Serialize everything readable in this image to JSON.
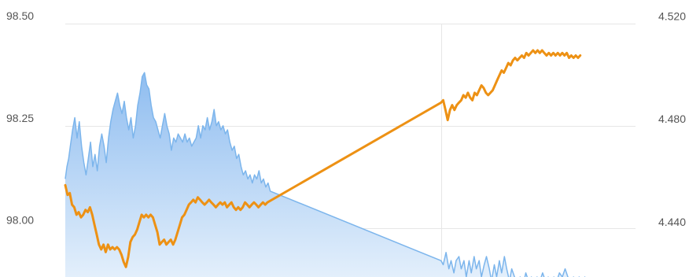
{
  "chart_data": {
    "type": "line",
    "title": "",
    "xlabel": "",
    "grid": true,
    "legend": "none",
    "axes": {
      "left": {
        "ylim": [
          97.88,
          98.5
        ],
        "ticks": [
          "98.50",
          "98.25",
          "98.00"
        ]
      },
      "right": {
        "ylim": [
          4.4216,
          4.5201
        ],
        "ticks": [
          "4.520",
          "4.480",
          "4.440"
        ]
      }
    },
    "xlim": [
      0,
      100
    ],
    "vertical_gridline_x": 66.9,
    "series": [
      {
        "axis": "left",
        "style": "area",
        "color": "#7cb5ec",
        "fill_top": "#8fbdf0",
        "fill_bottom": "#e8f2fc",
        "points": [
          [
            0,
            98.12
          ],
          [
            0.3,
            98.15
          ],
          [
            0.6,
            98.17
          ],
          [
            0.9,
            98.2
          ],
          [
            1.3,
            98.24
          ],
          [
            1.7,
            98.27
          ],
          [
            2.1,
            98.22
          ],
          [
            2.5,
            98.26
          ],
          [
            2.9,
            98.2
          ],
          [
            3.3,
            98.16
          ],
          [
            3.7,
            98.13
          ],
          [
            4.1,
            98.17
          ],
          [
            4.5,
            98.21
          ],
          [
            4.9,
            98.15
          ],
          [
            5.3,
            98.18
          ],
          [
            5.7,
            98.14
          ],
          [
            6.1,
            98.2
          ],
          [
            6.5,
            98.23
          ],
          [
            6.9,
            98.2
          ],
          [
            7.3,
            98.16
          ],
          [
            7.7,
            98.22
          ],
          [
            8.1,
            98.26
          ],
          [
            8.5,
            98.29
          ],
          [
            8.9,
            98.31
          ],
          [
            9.3,
            98.33
          ],
          [
            9.7,
            98.3
          ],
          [
            10.1,
            98.28
          ],
          [
            10.5,
            98.31
          ],
          [
            10.9,
            98.27
          ],
          [
            11.3,
            98.24
          ],
          [
            11.7,
            98.27
          ],
          [
            12.1,
            98.22
          ],
          [
            12.5,
            98.25
          ],
          [
            12.9,
            98.3
          ],
          [
            13.3,
            98.33
          ],
          [
            13.7,
            98.37
          ],
          [
            14.1,
            98.38
          ],
          [
            14.5,
            98.35
          ],
          [
            14.9,
            98.34
          ],
          [
            15.3,
            98.3
          ],
          [
            15.7,
            98.27
          ],
          [
            16.1,
            98.26
          ],
          [
            16.5,
            98.24
          ],
          [
            16.9,
            98.22
          ],
          [
            17.3,
            98.25
          ],
          [
            17.7,
            98.28
          ],
          [
            18.1,
            98.25
          ],
          [
            18.5,
            98.23
          ],
          [
            18.9,
            98.19
          ],
          [
            19.3,
            98.22
          ],
          [
            19.7,
            98.21
          ],
          [
            20.1,
            98.23
          ],
          [
            20.5,
            98.22
          ],
          [
            20.9,
            98.21
          ],
          [
            21.3,
            98.23
          ],
          [
            21.7,
            98.21
          ],
          [
            22.1,
            98.22
          ],
          [
            22.5,
            98.2
          ],
          [
            22.9,
            98.21
          ],
          [
            23.3,
            98.22
          ],
          [
            23.7,
            98.25
          ],
          [
            24.1,
            98.22
          ],
          [
            24.5,
            98.25
          ],
          [
            24.9,
            98.24
          ],
          [
            25.3,
            98.27
          ],
          [
            25.7,
            98.24
          ],
          [
            26.1,
            98.26
          ],
          [
            26.5,
            98.29
          ],
          [
            26.9,
            98.25
          ],
          [
            27.3,
            98.26
          ],
          [
            27.7,
            98.24
          ],
          [
            28.1,
            98.25
          ],
          [
            28.5,
            98.23
          ],
          [
            28.9,
            98.24
          ],
          [
            29.3,
            98.21
          ],
          [
            29.7,
            98.19
          ],
          [
            30.1,
            98.2
          ],
          [
            30.5,
            98.17
          ],
          [
            30.9,
            98.18
          ],
          [
            31.3,
            98.15
          ],
          [
            31.7,
            98.13
          ],
          [
            32.1,
            98.14
          ],
          [
            32.5,
            98.12
          ],
          [
            32.9,
            98.13
          ],
          [
            33.3,
            98.11
          ],
          [
            33.7,
            98.13
          ],
          [
            34.1,
            98.12
          ],
          [
            34.5,
            98.14
          ],
          [
            34.9,
            98.11
          ],
          [
            35.3,
            98.12
          ],
          [
            35.7,
            98.1
          ],
          [
            36.1,
            98.11
          ],
          [
            36.5,
            98.09
          ],
          [
            66.9,
            97.92
          ],
          [
            67.3,
            97.91
          ],
          [
            67.8,
            97.94
          ],
          [
            68.3,
            97.9
          ],
          [
            68.7,
            97.92
          ],
          [
            69.2,
            97.89
          ],
          [
            69.6,
            97.92
          ],
          [
            70.1,
            97.93
          ],
          [
            70.5,
            97.9
          ],
          [
            71,
            97.92
          ],
          [
            71.4,
            97.88
          ],
          [
            71.9,
            97.92
          ],
          [
            72.3,
            97.89
          ],
          [
            72.8,
            97.93
          ],
          [
            73.2,
            97.9
          ],
          [
            73.7,
            97.92
          ],
          [
            74.1,
            97.88
          ],
          [
            74.6,
            97.91
          ],
          [
            75,
            97.93
          ],
          [
            75.5,
            97.9
          ],
          [
            75.9,
            97.87
          ],
          [
            76.4,
            97.91
          ],
          [
            76.8,
            97.88
          ],
          [
            77.3,
            97.92
          ],
          [
            77.7,
            97.89
          ],
          [
            78.2,
            97.93
          ],
          [
            78.6,
            97.9
          ],
          [
            79.1,
            97.87
          ],
          [
            79.5,
            97.9
          ],
          [
            80,
            97.88
          ],
          [
            80.5,
            97.86
          ],
          [
            81,
            97.88
          ],
          [
            81.5,
            97.86
          ],
          [
            82,
            97.89
          ],
          [
            82.5,
            97.87
          ],
          [
            83,
            97.88
          ],
          [
            83.5,
            97.86
          ],
          [
            84,
            97.88
          ],
          [
            84.5,
            97.87
          ],
          [
            85,
            97.89
          ],
          [
            85.5,
            97.87
          ],
          [
            86,
            97.88
          ],
          [
            86.5,
            97.86
          ],
          [
            87,
            97.88
          ],
          [
            87.5,
            97.87
          ],
          [
            88,
            97.89
          ],
          [
            88.5,
            97.88
          ],
          [
            89,
            97.9
          ],
          [
            89.5,
            97.88
          ],
          [
            90,
            97.87
          ],
          [
            90.5,
            97.88
          ],
          [
            91,
            97.86
          ],
          [
            91.5,
            97.88
          ],
          [
            92,
            97.87
          ],
          [
            92.5,
            97.88
          ],
          [
            93,
            97.86
          ],
          [
            93.5,
            97.87
          ],
          [
            94,
            97.86
          ],
          [
            94.5,
            97.87
          ],
          [
            95,
            97.86
          ],
          [
            95.5,
            97.85
          ]
        ]
      },
      {
        "axis": "right",
        "style": "line",
        "color": "#ed9114",
        "points": [
          [
            0,
            4.4573
          ],
          [
            0.4,
            4.4535
          ],
          [
            0.8,
            4.4542
          ],
          [
            1.2,
            4.4497
          ],
          [
            1.6,
            4.4487
          ],
          [
            2,
            4.4458
          ],
          [
            2.4,
            4.4468
          ],
          [
            2.8,
            4.4448
          ],
          [
            3.2,
            4.4458
          ],
          [
            3.6,
            4.4477
          ],
          [
            4,
            4.4468
          ],
          [
            4.4,
            4.4487
          ],
          [
            4.8,
            4.4458
          ],
          [
            5.2,
            4.4419
          ],
          [
            5.6,
            4.4381
          ],
          [
            6,
            4.4342
          ],
          [
            6.4,
            4.4323
          ],
          [
            6.8,
            4.4342
          ],
          [
            7.2,
            4.4313
          ],
          [
            7.6,
            4.4342
          ],
          [
            8,
            4.4323
          ],
          [
            8.4,
            4.4332
          ],
          [
            8.8,
            4.4323
          ],
          [
            9.2,
            4.4332
          ],
          [
            9.6,
            4.4323
          ],
          [
            10,
            4.4303
          ],
          [
            10.4,
            4.4274
          ],
          [
            10.8,
            4.4255
          ],
          [
            11.2,
            4.4294
          ],
          [
            11.6,
            4.4352
          ],
          [
            12,
            4.4371
          ],
          [
            12.4,
            4.4381
          ],
          [
            12.8,
            4.44
          ],
          [
            13.2,
            4.4429
          ],
          [
            13.6,
            4.4458
          ],
          [
            14,
            4.4448
          ],
          [
            14.4,
            4.4458
          ],
          [
            14.8,
            4.4448
          ],
          [
            15.2,
            4.4458
          ],
          [
            15.6,
            4.4448
          ],
          [
            16,
            4.4419
          ],
          [
            16.4,
            4.439
          ],
          [
            16.8,
            4.4342
          ],
          [
            17.2,
            4.4352
          ],
          [
            17.6,
            4.4361
          ],
          [
            18,
            4.4342
          ],
          [
            18.4,
            4.4352
          ],
          [
            18.8,
            4.4361
          ],
          [
            19.2,
            4.4342
          ],
          [
            19.6,
            4.4361
          ],
          [
            20,
            4.439
          ],
          [
            20.4,
            4.4419
          ],
          [
            20.8,
            4.4448
          ],
          [
            21.2,
            4.4458
          ],
          [
            21.6,
            4.4477
          ],
          [
            22,
            4.4497
          ],
          [
            22.4,
            4.4506
          ],
          [
            22.8,
            4.4516
          ],
          [
            23.2,
            4.4506
          ],
          [
            23.6,
            4.4526
          ],
          [
            24,
            4.4516
          ],
          [
            24.4,
            4.4506
          ],
          [
            24.8,
            4.4497
          ],
          [
            25.2,
            4.4506
          ],
          [
            25.6,
            4.4516
          ],
          [
            26,
            4.4506
          ],
          [
            26.4,
            4.4497
          ],
          [
            26.8,
            4.4487
          ],
          [
            27.2,
            4.4497
          ],
          [
            27.6,
            4.4506
          ],
          [
            28,
            4.4497
          ],
          [
            28.4,
            4.4506
          ],
          [
            28.8,
            4.4487
          ],
          [
            29.2,
            4.4497
          ],
          [
            29.6,
            4.4506
          ],
          [
            30,
            4.4487
          ],
          [
            30.4,
            4.4477
          ],
          [
            30.8,
            4.4487
          ],
          [
            31.2,
            4.4477
          ],
          [
            31.6,
            4.4487
          ],
          [
            32,
            4.4506
          ],
          [
            32.4,
            4.4497
          ],
          [
            32.8,
            4.4487
          ],
          [
            33.2,
            4.4497
          ],
          [
            33.6,
            4.4506
          ],
          [
            34,
            4.4497
          ],
          [
            34.4,
            4.4487
          ],
          [
            34.8,
            4.4497
          ],
          [
            35.2,
            4.4506
          ],
          [
            35.6,
            4.4497
          ],
          [
            36,
            4.4506
          ],
          [
            66.9,
            4.4894
          ],
          [
            67.3,
            4.4903
          ],
          [
            67.7,
            4.4865
          ],
          [
            68.1,
            4.4826
          ],
          [
            68.5,
            4.4865
          ],
          [
            68.9,
            4.4884
          ],
          [
            69.3,
            4.4865
          ],
          [
            69.7,
            4.4884
          ],
          [
            70.1,
            4.4894
          ],
          [
            70.5,
            4.4903
          ],
          [
            70.9,
            4.4923
          ],
          [
            71.3,
            4.4913
          ],
          [
            71.7,
            4.4932
          ],
          [
            72.1,
            4.4913
          ],
          [
            72.5,
            4.4903
          ],
          [
            72.9,
            4.4932
          ],
          [
            73.3,
            4.4923
          ],
          [
            73.7,
            4.4942
          ],
          [
            74.1,
            4.4961
          ],
          [
            74.5,
            4.4951
          ],
          [
            74.9,
            4.4932
          ],
          [
            75.3,
            4.4923
          ],
          [
            75.7,
            4.4932
          ],
          [
            76.1,
            4.4942
          ],
          [
            76.5,
            4.4961
          ],
          [
            76.9,
            4.4981
          ],
          [
            77.3,
            4.5
          ],
          [
            77.7,
            4.5019
          ],
          [
            78.1,
            4.501
          ],
          [
            78.5,
            4.5029
          ],
          [
            78.9,
            4.5048
          ],
          [
            79.3,
            4.5039
          ],
          [
            79.7,
            4.5058
          ],
          [
            80.1,
            4.5068
          ],
          [
            80.5,
            4.5058
          ],
          [
            80.9,
            4.5068
          ],
          [
            81.3,
            4.5077
          ],
          [
            81.7,
            4.5068
          ],
          [
            82.1,
            4.5087
          ],
          [
            82.5,
            4.5077
          ],
          [
            82.9,
            4.5087
          ],
          [
            83.3,
            4.5097
          ],
          [
            83.7,
            4.5087
          ],
          [
            84.1,
            4.5097
          ],
          [
            84.5,
            4.5087
          ],
          [
            84.9,
            4.5097
          ],
          [
            85.3,
            4.5087
          ],
          [
            85.7,
            4.5077
          ],
          [
            86.1,
            4.5087
          ],
          [
            86.5,
            4.5077
          ],
          [
            86.9,
            4.5087
          ],
          [
            87.3,
            4.5077
          ],
          [
            87.7,
            4.5087
          ],
          [
            88.1,
            4.5077
          ],
          [
            88.5,
            4.5087
          ],
          [
            88.9,
            4.5077
          ],
          [
            89.3,
            4.5087
          ],
          [
            89.7,
            4.5068
          ],
          [
            90.1,
            4.5077
          ],
          [
            90.5,
            4.5068
          ],
          [
            90.9,
            4.5077
          ],
          [
            91.3,
            4.5068
          ],
          [
            91.7,
            4.5077
          ]
        ]
      }
    ]
  }
}
